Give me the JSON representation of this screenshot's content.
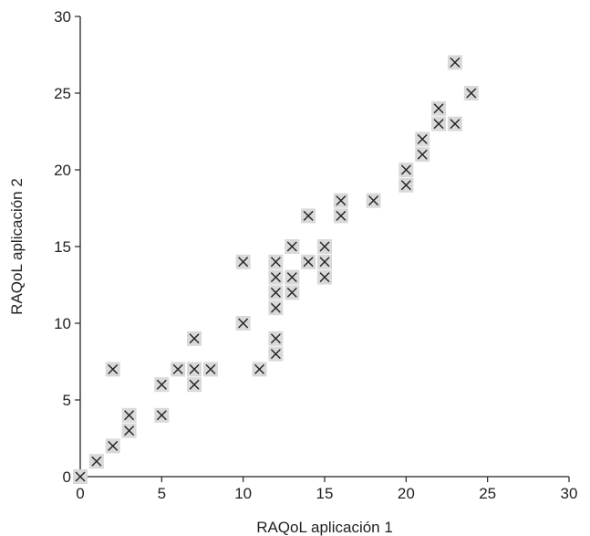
{
  "chart_data": {
    "type": "scatter",
    "xlabel": "RAQoL aplicación 1",
    "ylabel": "RAQoL aplicación 2",
    "xlim": [
      0,
      30
    ],
    "ylim": [
      0,
      30
    ],
    "x_ticks": [
      "0",
      "5",
      "10",
      "15",
      "20",
      "25",
      "30"
    ],
    "y_ticks": [
      "0",
      "5",
      "10",
      "15",
      "20",
      "25",
      "30"
    ],
    "grid": false,
    "marker": "x",
    "marker_color": "#222222",
    "marker_bg": "#d9d9d9",
    "points": [
      [
        0,
        0
      ],
      [
        1,
        1
      ],
      [
        2,
        2
      ],
      [
        2,
        7
      ],
      [
        3,
        3
      ],
      [
        3,
        4
      ],
      [
        5,
        4
      ],
      [
        5,
        6
      ],
      [
        6,
        7
      ],
      [
        7,
        6
      ],
      [
        7,
        7
      ],
      [
        7,
        9
      ],
      [
        8,
        7
      ],
      [
        10,
        10
      ],
      [
        10,
        14
      ],
      [
        11,
        7
      ],
      [
        12,
        8
      ],
      [
        12,
        9
      ],
      [
        12,
        11
      ],
      [
        12,
        12
      ],
      [
        12,
        13
      ],
      [
        12,
        14
      ],
      [
        13,
        12
      ],
      [
        13,
        13
      ],
      [
        13,
        15
      ],
      [
        14,
        14
      ],
      [
        14,
        17
      ],
      [
        15,
        13
      ],
      [
        15,
        14
      ],
      [
        15,
        15
      ],
      [
        16,
        17
      ],
      [
        16,
        18
      ],
      [
        18,
        18
      ],
      [
        20,
        19
      ],
      [
        20,
        20
      ],
      [
        21,
        21
      ],
      [
        21,
        22
      ],
      [
        22,
        23
      ],
      [
        22,
        24
      ],
      [
        23,
        23
      ],
      [
        23,
        27
      ],
      [
        24,
        25
      ]
    ]
  }
}
